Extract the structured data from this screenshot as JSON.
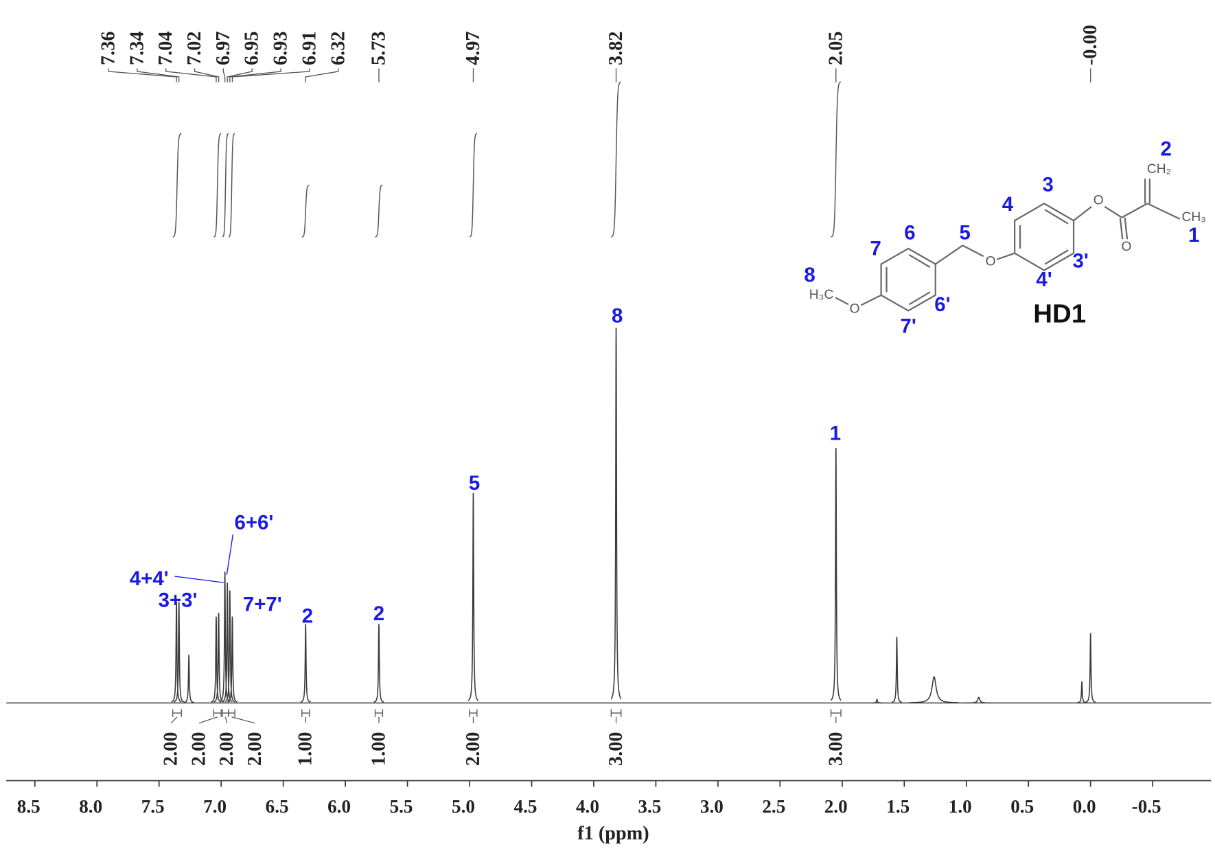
{
  "chart_data": {
    "type": "nmr",
    "xlabel": "f1 (ppm)",
    "xlim": [
      8.73,
      -0.97
    ],
    "xticks": [
      8.5,
      {
        "value": 8,
        "label": "8.0"
      },
      7.5,
      {
        "value": 7,
        "label": "7.0"
      },
      6.5,
      {
        "value": 6,
        "label": "6.0"
      },
      5.5,
      {
        "value": 5,
        "label": "5.0"
      },
      4.5,
      {
        "value": 4,
        "label": "4.0"
      },
      3.5,
      {
        "value": 3,
        "label": "3.0"
      },
      2.5,
      {
        "value": 2,
        "label": "2.0"
      },
      1.5,
      {
        "value": 1,
        "label": "1.0"
      },
      0.5,
      {
        "value": 0,
        "label": "0.0"
      },
      -0.5
    ],
    "ylim": [
      0,
      100
    ],
    "color": "#3a3a3a",
    "peak_labels": [
      7.36,
      7.34,
      7.04,
      7.02,
      6.97,
      6.95,
      6.93,
      6.91,
      6.32,
      5.73,
      4.97,
      3.82,
      2.05,
      {
        "value": 0,
        "label": "-0.00"
      }
    ],
    "peaks": [
      {
        "x": 7.36,
        "height": 27
      },
      {
        "x": 7.34,
        "height": 27
      },
      {
        "x": 7.26,
        "height": 12.8
      },
      {
        "x": 7.04,
        "height": 23
      },
      {
        "x": 7.02,
        "height": 24
      },
      {
        "x": 6.97,
        "height": 35
      },
      {
        "x": 6.95,
        "height": 32
      },
      {
        "x": 6.93,
        "height": 30
      },
      {
        "x": 6.91,
        "height": 23
      },
      {
        "x": 6.32,
        "height": 21
      },
      {
        "x": 5.73,
        "height": 21
      },
      {
        "x": 4.97,
        "height": 56
      },
      {
        "x": 3.82,
        "height": 100
      },
      {
        "x": 2.05,
        "height": 68
      },
      {
        "x": 1.72,
        "height": 1
      },
      {
        "x": 1.56,
        "height": 17.6
      },
      {
        "x": 1.26,
        "height": 7,
        "width": 0.02
      },
      {
        "x": 0.9,
        "height": 1.5,
        "width": 0.01
      },
      {
        "x": 0.07,
        "height": 5.6
      },
      {
        "x": 0,
        "height": 18.6
      }
    ],
    "integrals": [
      {
        "from": 7.39,
        "to": 7.32,
        "value": 2,
        "label": "2.00"
      },
      {
        "from": 7.06,
        "to": 7.0,
        "value": 2,
        "label": "2.00"
      },
      {
        "from": 6.99,
        "to": 6.94,
        "value": 2,
        "label": "2.00"
      },
      {
        "from": 6.94,
        "to": 6.89,
        "value": 2,
        "label": "2.00"
      },
      {
        "from": 6.35,
        "to": 6.29,
        "value": 1,
        "label": "1.00"
      },
      {
        "from": 5.76,
        "to": 5.7,
        "value": 1,
        "label": "1.00"
      },
      {
        "from": 5.0,
        "to": 4.94,
        "value": 2,
        "label": "2.00"
      },
      {
        "from": 3.86,
        "to": 3.78,
        "value": 3,
        "label": "3.00"
      },
      {
        "from": 2.09,
        "to": 2.01,
        "value": 3,
        "label": "3.00"
      }
    ],
    "annotation_color": "#1a1ae6",
    "annotations": [
      "3+3'",
      "4+4'",
      "6+6'",
      "7+7'",
      "2",
      "2",
      "5",
      "8",
      "1"
    ],
    "structure": {
      "name": "HD1",
      "positions": [
        "1",
        "2",
        "3",
        "3'",
        "4",
        "4'",
        "5",
        "6",
        "6'",
        "7",
        "7'",
        "8"
      ],
      "groups": [
        "CH₂",
        "CH₃",
        "H₃C",
        "O",
        "O",
        "O",
        "O"
      ]
    }
  }
}
